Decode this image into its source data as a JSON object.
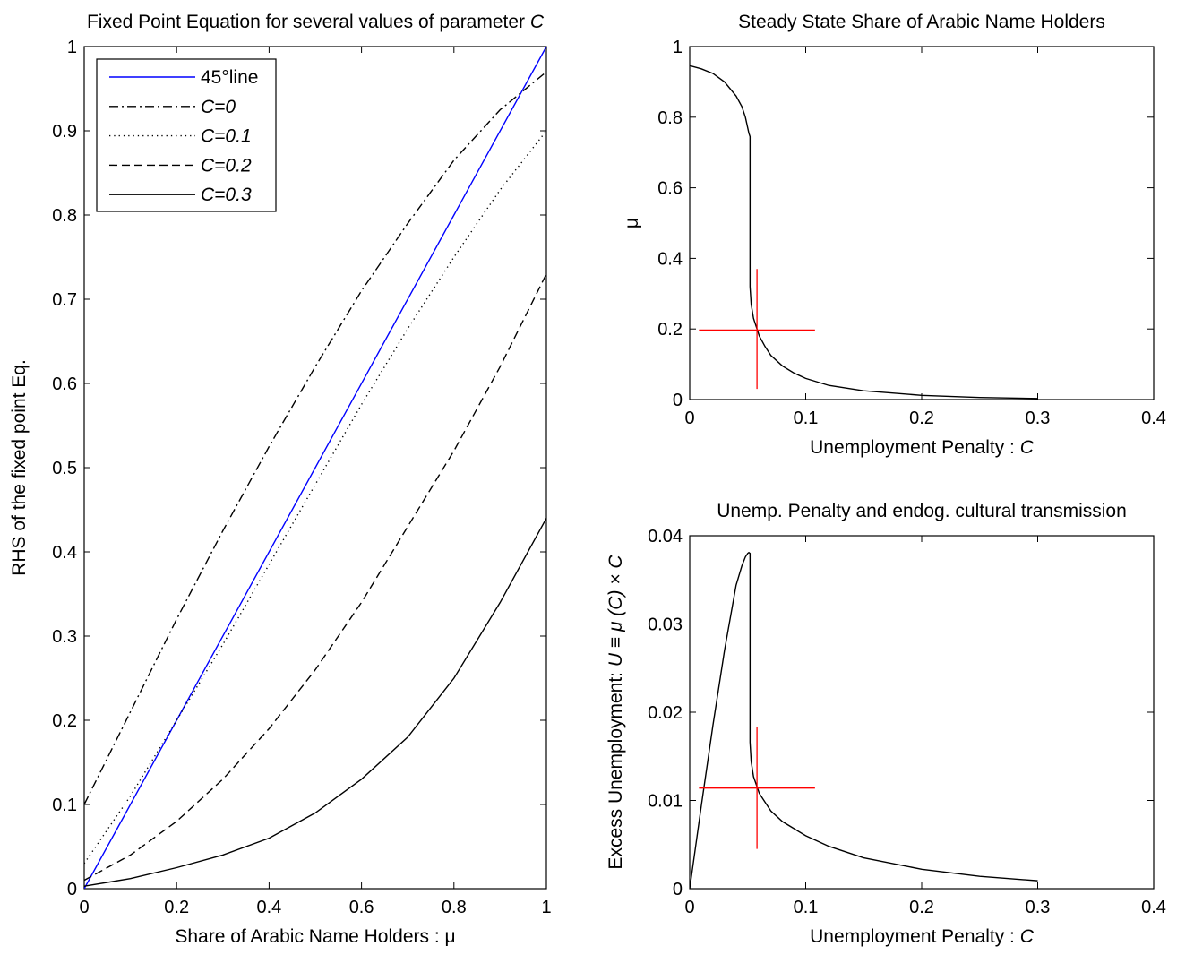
{
  "chart_data": [
    {
      "type": "line",
      "title": "Fixed Point Equation for several values of parameter",
      "title_var": "C",
      "xlabel": "Share of Arabic Name Holders : μ",
      "ylabel": "RHS of the fixed point Eq.",
      "xlim": [
        0,
        1
      ],
      "ylim": [
        0,
        1
      ],
      "xticks": [
        0,
        0.2,
        0.4,
        0.6,
        0.8,
        1
      ],
      "xtick_labels": [
        "0",
        "0.2",
        "0.4",
        "0.6",
        "0.8",
        "1"
      ],
      "yticks": [
        0,
        0.1,
        0.2,
        0.3,
        0.4,
        0.5,
        0.6,
        0.7,
        0.8,
        0.9,
        1
      ],
      "ytick_labels": [
        "0",
        "0.1",
        "0.2",
        "0.3",
        "0.4",
        "0.5",
        "0.6",
        "0.7",
        "0.8",
        "0.9",
        "1"
      ],
      "legend_position": "top-left",
      "grid": false,
      "series": [
        {
          "name": "45°line",
          "color": "#0000ff",
          "style": "solid",
          "x": [
            0,
            1
          ],
          "y": [
            0,
            1
          ]
        },
        {
          "name": "C=0",
          "color": "#000000",
          "style": "dashdot",
          "x": [
            0,
            0.1,
            0.2,
            0.3,
            0.4,
            0.5,
            0.6,
            0.7,
            0.8,
            0.9,
            1
          ],
          "y": [
            0.1,
            0.21,
            0.32,
            0.425,
            0.525,
            0.62,
            0.71,
            0.79,
            0.865,
            0.925,
            0.97
          ]
        },
        {
          "name": "C=0.1",
          "color": "#000000",
          "style": "dotted",
          "x": [
            0,
            0.1,
            0.2,
            0.3,
            0.4,
            0.5,
            0.6,
            0.7,
            0.8,
            0.9,
            1
          ],
          "y": [
            0.03,
            0.11,
            0.2,
            0.29,
            0.385,
            0.48,
            0.575,
            0.665,
            0.75,
            0.83,
            0.9
          ]
        },
        {
          "name": "C=0.2",
          "color": "#000000",
          "style": "dashed",
          "x": [
            0,
            0.1,
            0.2,
            0.3,
            0.4,
            0.5,
            0.6,
            0.7,
            0.8,
            0.9,
            1
          ],
          "y": [
            0.01,
            0.04,
            0.08,
            0.13,
            0.19,
            0.26,
            0.34,
            0.43,
            0.52,
            0.62,
            0.73
          ]
        },
        {
          "name": "C=0.3",
          "color": "#000000",
          "style": "solid",
          "x": [
            0,
            0.1,
            0.2,
            0.3,
            0.4,
            0.5,
            0.6,
            0.7,
            0.8,
            0.9,
            1
          ],
          "y": [
            0.003,
            0.012,
            0.025,
            0.04,
            0.06,
            0.09,
            0.13,
            0.18,
            0.25,
            0.34,
            0.44
          ]
        }
      ]
    },
    {
      "type": "line",
      "title": "Steady State Share of Arabic Name Holders",
      "xlabel": "Unemployment Penalty :",
      "xlabel_var": "C",
      "ylabel": "μ",
      "xlim": [
        0,
        0.4
      ],
      "ylim": [
        0,
        1
      ],
      "xticks": [
        0,
        0.1,
        0.2,
        0.3,
        0.4
      ],
      "xtick_labels": [
        "0",
        "0.1",
        "0.2",
        "0.3",
        "0.4"
      ],
      "yticks": [
        0,
        0.2,
        0.4,
        0.6,
        0.8,
        1
      ],
      "ytick_labels": [
        "0",
        "0.2",
        "0.4",
        "0.6",
        "0.8",
        "1"
      ],
      "grid": false,
      "series": [
        {
          "color": "#000000",
          "style": "solid",
          "x": [
            0,
            0.01,
            0.02,
            0.03,
            0.04,
            0.045,
            0.048,
            0.05,
            0.051,
            0.052,
            0.052,
            0.053,
            0.055,
            0.06,
            0.065,
            0.07,
            0.08,
            0.09,
            0.1,
            0.12,
            0.15,
            0.2,
            0.25,
            0.3
          ],
          "y": [
            0.946,
            0.937,
            0.924,
            0.9,
            0.86,
            0.83,
            0.8,
            0.77,
            0.755,
            0.745,
            0.32,
            0.27,
            0.23,
            0.18,
            0.15,
            0.125,
            0.095,
            0.075,
            0.06,
            0.04,
            0.025,
            0.012,
            0.006,
            0.003
          ]
        }
      ],
      "crosshair": {
        "x": 0.058,
        "y": 0.197,
        "x_range": [
          0.008,
          0.108
        ],
        "y_range": [
          0.03,
          0.37
        ],
        "color": "#ff0000"
      }
    },
    {
      "type": "line",
      "title": "Unemp. Penalty and endog. cultural transmission",
      "xlabel": "Unemployment Penalty :",
      "xlabel_var": "C",
      "ylabel_prefix": "Excess Unemployment:",
      "ylabel_formula": "U ≡ μ (C) × C",
      "xlim": [
        0,
        0.4
      ],
      "ylim": [
        0,
        0.04
      ],
      "xticks": [
        0,
        0.1,
        0.2,
        0.3,
        0.4
      ],
      "xtick_labels": [
        "0",
        "0.1",
        "0.2",
        "0.3",
        "0.4"
      ],
      "yticks": [
        0,
        0.01,
        0.02,
        0.03,
        0.04
      ],
      "ytick_labels": [
        "0",
        "0.01",
        "0.02",
        "0.03",
        "0.04"
      ],
      "grid": false,
      "series": [
        {
          "color": "#000000",
          "style": "solid",
          "x": [
            0,
            0.01,
            0.02,
            0.03,
            0.04,
            0.045,
            0.048,
            0.05,
            0.051,
            0.052,
            0.052,
            0.053,
            0.055,
            0.06,
            0.065,
            0.07,
            0.08,
            0.09,
            0.1,
            0.12,
            0.15,
            0.2,
            0.25,
            0.3
          ],
          "y": [
            0,
            0.0094,
            0.0185,
            0.027,
            0.0344,
            0.0366,
            0.0376,
            0.038,
            0.0381,
            0.038,
            0.0166,
            0.0144,
            0.0127,
            0.0108,
            0.0098,
            0.0088,
            0.0076,
            0.0068,
            0.006,
            0.0048,
            0.0035,
            0.0022,
            0.0014,
            0.0009
          ]
        }
      ],
      "crosshair": {
        "x": 0.058,
        "y": 0.0114,
        "x_range": [
          0.008,
          0.108
        ],
        "y_range": [
          0.0045,
          0.0183
        ],
        "color": "#ff0000"
      }
    }
  ]
}
